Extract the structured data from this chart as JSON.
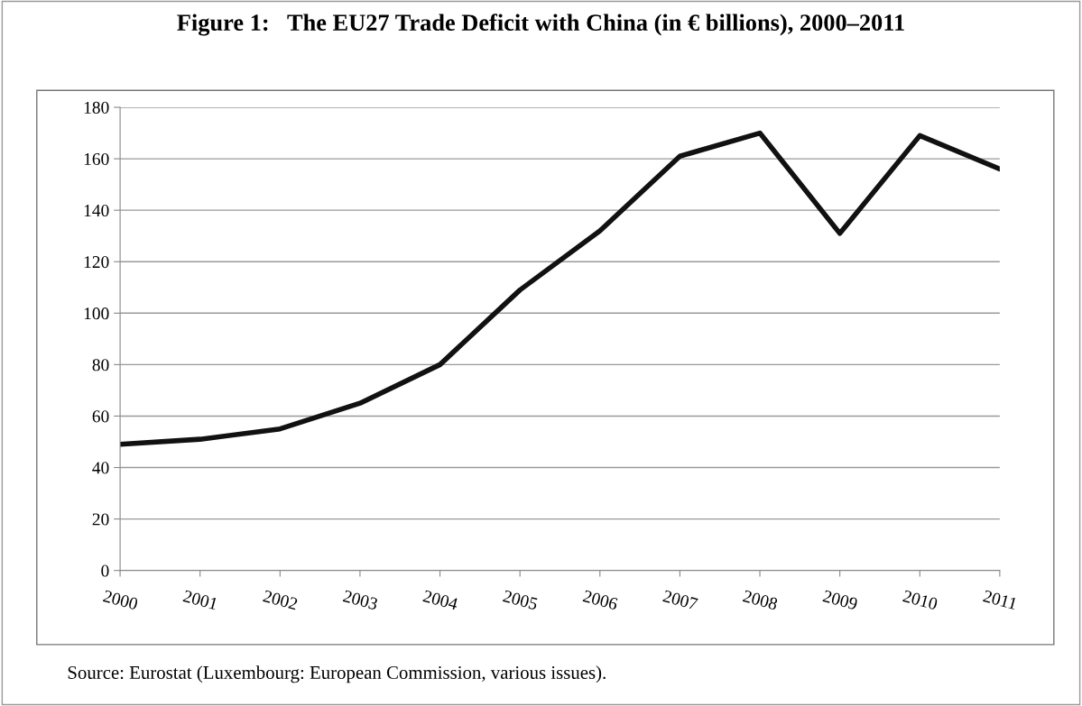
{
  "chart_data": {
    "type": "line",
    "title": "Figure 1:   The EU27 Trade Deficit with China (in € billions), 2000–2011",
    "categories": [
      "2000",
      "2001",
      "2002",
      "2003",
      "2004",
      "2005",
      "2006",
      "2007",
      "2008",
      "2009",
      "2010",
      "2011"
    ],
    "series": [
      {
        "color": "#111111",
        "values": [
          49,
          51,
          55,
          65,
          80,
          109,
          132,
          161,
          170,
          131,
          169,
          156
        ]
      }
    ],
    "ylim": [
      0,
      180
    ],
    "yticks": [
      0,
      20,
      40,
      60,
      80,
      100,
      120,
      140,
      160,
      180
    ],
    "grid": "y",
    "legend": false,
    "marker": "none",
    "line_style": "solid",
    "annotations": [
      "Source: Eurostat (Luxembourg: European Commission, various issues)."
    ]
  }
}
